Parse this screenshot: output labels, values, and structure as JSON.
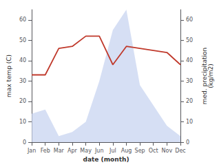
{
  "chart_data": {
    "type": "line",
    "categories": [
      "Jan",
      "Feb",
      "Mar",
      "Apr",
      "May",
      "Jun",
      "Jul",
      "Aug",
      "Sep",
      "Oct",
      "Nov",
      "Dec"
    ],
    "series": [
      {
        "type": "line",
        "color": "#c0392b",
        "values": [
          33,
          33,
          46,
          47,
          52,
          52,
          38,
          47,
          46,
          45,
          44,
          38
        ]
      },
      {
        "type": "area",
        "color": "#c8d4f0",
        "values": [
          14,
          16,
          3,
          5,
          10,
          30,
          55,
          65,
          28,
          18,
          8,
          3
        ],
        "axis": "y2"
      }
    ],
    "xlabel": "date (month)",
    "ylabel": "max temp (C)",
    "y2label": "med. precipitation\n(kg/m2)",
    "ylim": [
      0,
      65
    ],
    "yticks": [
      0,
      10,
      20,
      30,
      40,
      50,
      60
    ],
    "y2lim": [
      0,
      65
    ],
    "y2ticks": [
      0,
      10,
      20,
      30,
      40,
      50,
      60
    ],
    "grid": false
  }
}
